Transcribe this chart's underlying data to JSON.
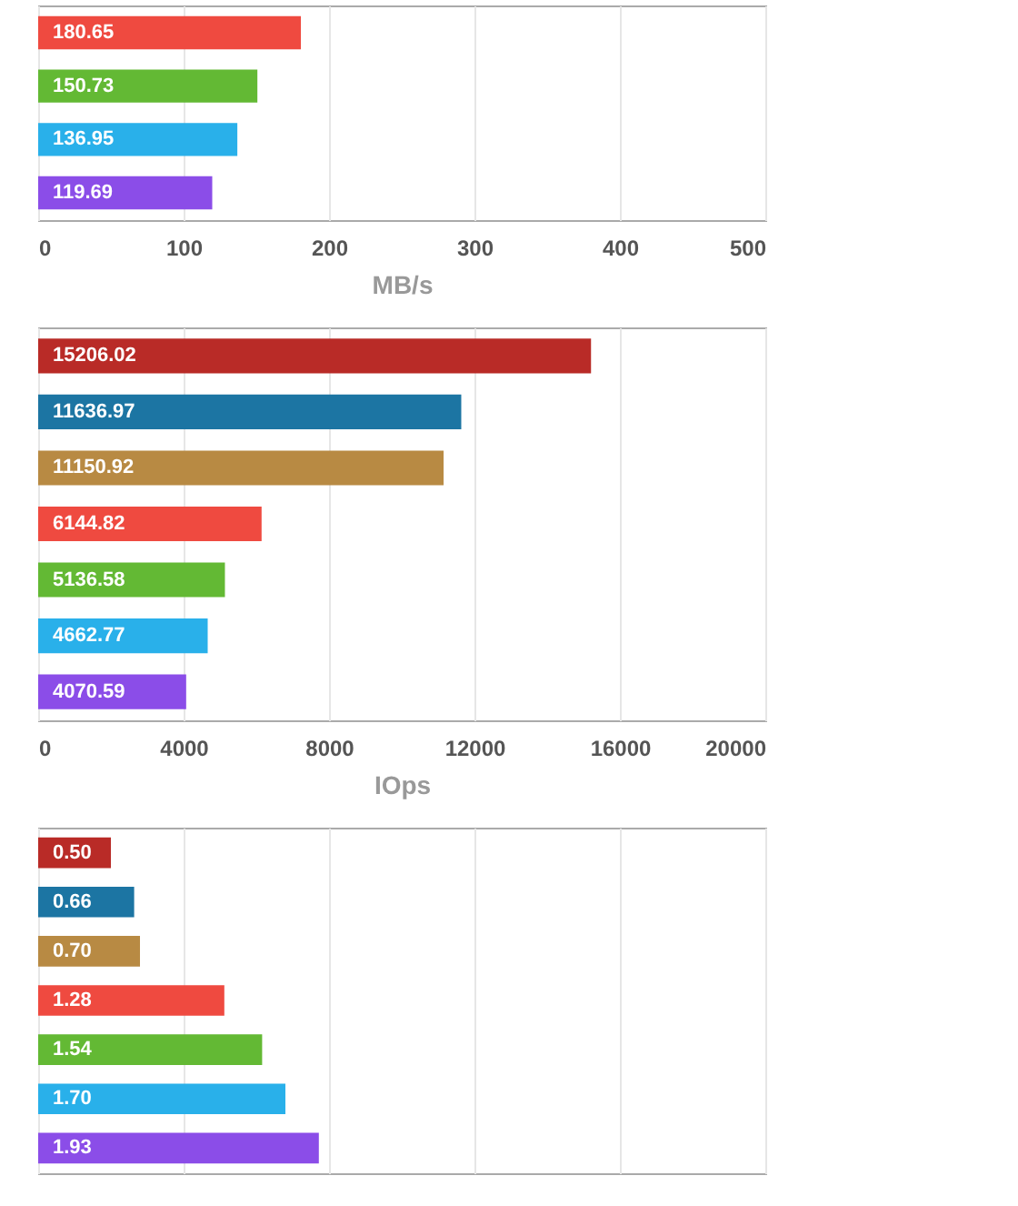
{
  "chart_data": [
    {
      "type": "bar",
      "orientation": "horizontal",
      "xlabel": "MB/s",
      "categories": [
        null,
        null,
        null,
        null
      ],
      "values": [
        180.65,
        150.73,
        136.95,
        119.69
      ],
      "value_labels": [
        "180.65",
        "150.73",
        "136.95",
        "119.69"
      ],
      "colors": [
        "#ef4a40",
        "#63b934",
        "#29b0ea",
        "#8b4de8"
      ],
      "xlim": [
        0,
        500
      ],
      "xticks": [
        0,
        100,
        200,
        300,
        400,
        500
      ],
      "grid": "x"
    },
    {
      "type": "bar",
      "orientation": "horizontal",
      "xlabel": "IOps",
      "categories": [
        null,
        null,
        null,
        null,
        null,
        null,
        null
      ],
      "values": [
        15206.02,
        11636.97,
        11150.92,
        6144.82,
        5136.58,
        4662.77,
        4070.59
      ],
      "value_labels": [
        "15206.02",
        "11636.97",
        "11150.92",
        "6144.82",
        "5136.58",
        "4662.77",
        "4070.59"
      ],
      "colors": [
        "#b92b27",
        "#1c75a3",
        "#b88a43",
        "#ef4a40",
        "#63b934",
        "#29b0ea",
        "#8b4de8"
      ],
      "xlim": [
        0,
        20000
      ],
      "xticks": [
        0,
        4000,
        8000,
        12000,
        16000,
        20000
      ],
      "grid": "x"
    },
    {
      "type": "bar",
      "orientation": "horizontal",
      "categories": [
        null,
        null,
        null,
        null,
        null,
        null,
        null
      ],
      "values": [
        0.5,
        0.66,
        0.7,
        1.28,
        1.54,
        1.7,
        1.93
      ],
      "value_labels": [
        "0.50",
        "0.66",
        "0.70",
        "1.28",
        "1.54",
        "1.70",
        "1.93"
      ],
      "colors": [
        "#b92b27",
        "#1c75a3",
        "#b88a43",
        "#ef4a40",
        "#63b934",
        "#29b0ea",
        "#8b4de8"
      ],
      "xlim": [
        0,
        5
      ],
      "xticks": [
        0,
        1,
        2,
        3,
        4,
        5
      ],
      "grid": "x",
      "tick_labels": false
    }
  ]
}
